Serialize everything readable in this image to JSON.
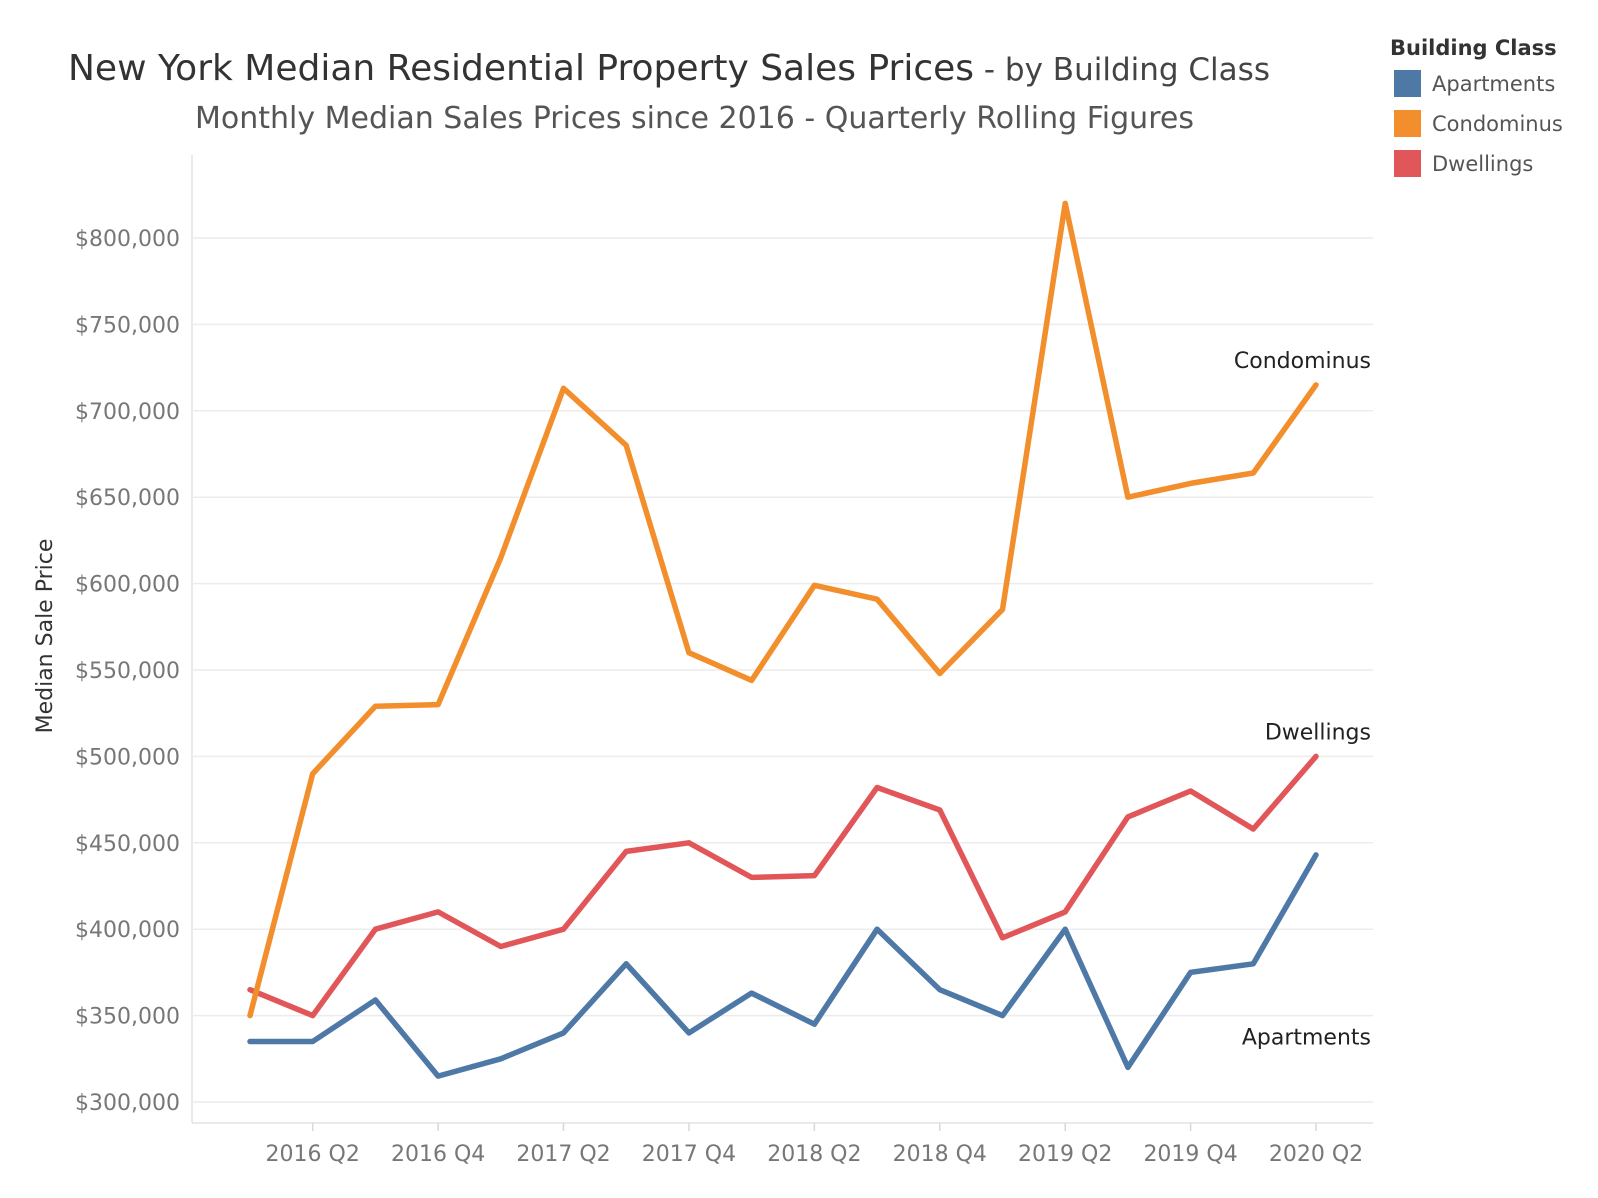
{
  "colors": {
    "apartments": "#4e79a7",
    "condominus": "#f28e2b",
    "dwellings": "#e15759"
  },
  "chart_data": {
    "type": "line",
    "title": "New York  Median Residential Property Sales Prices",
    "title_suffix": " - by Building Class",
    "subtitle": "Monthly Median Sales Prices since 2016 - Quarterly Rolling Figures",
    "xlabel": "",
    "ylabel": "Median Sale Price",
    "ylim": [
      295000,
      835000
    ],
    "y_ticks": [
      300000,
      350000,
      400000,
      450000,
      500000,
      550000,
      600000,
      650000,
      700000,
      750000,
      800000
    ],
    "y_tick_labels": [
      "$300,000",
      "$350,000",
      "$400,000",
      "$450,000",
      "$500,000",
      "$550,000",
      "$600,000",
      "$650,000",
      "$700,000",
      "$750,000",
      "$800,000"
    ],
    "x": [
      "2016 Q1",
      "2016 Q2",
      "2016 Q3",
      "2016 Q4",
      "2017 Q1",
      "2017 Q2",
      "2017 Q3",
      "2017 Q4",
      "2018 Q1",
      "2018 Q2",
      "2018 Q3",
      "2018 Q4",
      "2019 Q1",
      "2019 Q2",
      "2019 Q3",
      "2019 Q4",
      "2020 Q1",
      "2020 Q2"
    ],
    "x_tick_labels": [
      "2016 Q2",
      "2016 Q4",
      "2017 Q2",
      "2017 Q4",
      "2018 Q2",
      "2018 Q4",
      "2019 Q2",
      "2019 Q4",
      "2020 Q2"
    ],
    "grid": true,
    "legend": {
      "title": "Building Class",
      "placement": "top-right"
    },
    "series": [
      {
        "name": "Apartments",
        "color": "#4e79a7",
        "values": [
          335000,
          335000,
          359000,
          315000,
          325000,
          340000,
          380000,
          340000,
          363000,
          345000,
          400000,
          365000,
          350000,
          400000,
          320000,
          375000,
          380000,
          443000
        ]
      },
      {
        "name": "Condominus",
        "color": "#f28e2b",
        "values": [
          350000,
          490000,
          529000,
          530000,
          615000,
          713000,
          680000,
          560000,
          544000,
          599000,
          591000,
          548000,
          585000,
          820000,
          650000,
          658000,
          664000,
          715000
        ]
      },
      {
        "name": "Dwellings",
        "color": "#e15759",
        "values": [
          365000,
          350000,
          400000,
          410000,
          390000,
          400000,
          445000,
          450000,
          430000,
          431000,
          482000,
          469000,
          395000,
          410000,
          465000,
          480000,
          458000,
          500000
        ]
      }
    ]
  }
}
